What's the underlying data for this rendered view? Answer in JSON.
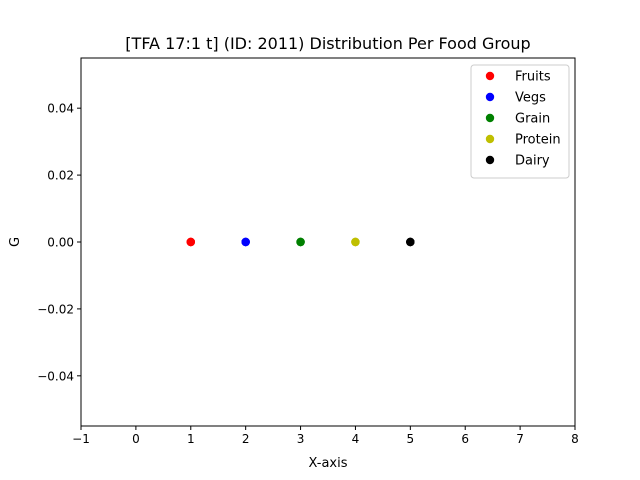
{
  "chart_data": {
    "type": "scatter",
    "title": "[TFA 17:1 t] (ID: 2011) Distribution Per Food Group",
    "xlabel": "X-axis",
    "ylabel": "G",
    "xlim": [
      -1,
      8
    ],
    "ylim": [
      -0.055,
      0.055
    ],
    "xticks": [
      -1,
      0,
      1,
      2,
      3,
      4,
      5,
      6,
      7,
      8
    ],
    "xtick_labels": [
      "−1",
      "0",
      "1",
      "2",
      "3",
      "4",
      "5",
      "6",
      "7",
      "8"
    ],
    "yticks": [
      -0.04,
      -0.02,
      0.0,
      0.02,
      0.04
    ],
    "ytick_labels": [
      "−0.04",
      "−0.02",
      "0.00",
      "0.02",
      "0.04"
    ],
    "grid": false,
    "legend_position": "top-right",
    "series": [
      {
        "name": "Fruits",
        "color": "#ff0000",
        "x": [
          1,
          1,
          1
        ],
        "y": [
          0,
          0,
          0
        ]
      },
      {
        "name": "Vegs",
        "color": "#0000ff",
        "x": [
          2,
          2,
          2
        ],
        "y": [
          0,
          0,
          0
        ]
      },
      {
        "name": "Grain",
        "color": "#008000",
        "x": [
          3,
          3,
          3
        ],
        "y": [
          0,
          0,
          0
        ]
      },
      {
        "name": "Protein",
        "color": "#bfbf00",
        "x": [
          4,
          4,
          4
        ],
        "y": [
          0,
          0,
          0
        ]
      },
      {
        "name": "Dairy",
        "color": "#000000",
        "x": [
          5,
          5,
          5
        ],
        "y": [
          0,
          0,
          0
        ]
      }
    ]
  }
}
